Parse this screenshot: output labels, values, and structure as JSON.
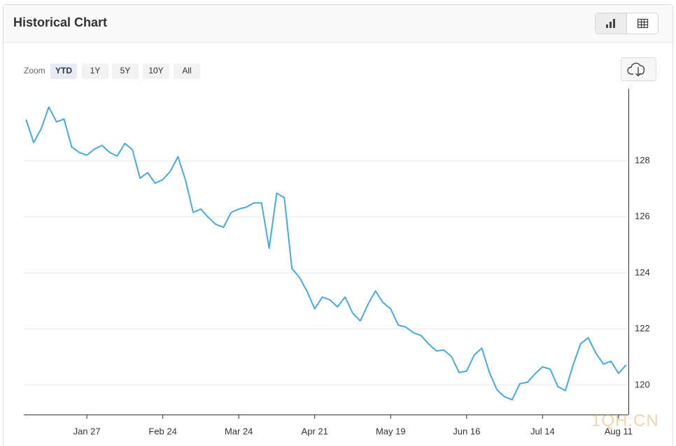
{
  "header": {
    "title": "Historical Chart"
  },
  "zoom": {
    "label": "Zoom",
    "options": [
      "YTD",
      "1Y",
      "5Y",
      "10Y",
      "All"
    ],
    "selected": "YTD"
  },
  "watermark": "1QH.CN",
  "chart_data": {
    "type": "line",
    "color": "#4aa8e0",
    "grid": true,
    "categories": [
      null,
      null,
      null,
      null,
      null,
      null,
      null,
      null,
      "Jan 27",
      null,
      null,
      null,
      null,
      null,
      null,
      null,
      null,
      null,
      "Feb 24",
      null,
      null,
      null,
      null,
      null,
      null,
      null,
      null,
      null,
      "Mar 24",
      null,
      null,
      null,
      null,
      null,
      null,
      null,
      null,
      null,
      "Apr 21",
      null,
      null,
      null,
      null,
      null,
      null,
      null,
      null,
      null,
      "May 19",
      null,
      null,
      null,
      null,
      null,
      null,
      null,
      null,
      null,
      "Jun 16",
      null,
      null,
      null,
      null,
      null,
      null,
      null,
      null,
      null,
      "Jul 14",
      null,
      null,
      null,
      null,
      null,
      null,
      null,
      null,
      null,
      "Aug 11",
      null
    ],
    "values": [
      129.47,
      128.65,
      129.15,
      129.92,
      129.39,
      129.49,
      128.5,
      128.3,
      128.2,
      128.42,
      128.55,
      128.3,
      128.17,
      128.62,
      128.4,
      127.38,
      127.58,
      127.2,
      127.33,
      127.63,
      128.15,
      127.3,
      126.16,
      126.28,
      125.98,
      125.73,
      125.63,
      126.16,
      126.28,
      126.35,
      126.5,
      126.5,
      124.88,
      126.85,
      126.68,
      124.16,
      123.84,
      123.34,
      122.72,
      123.14,
      123.04,
      122.79,
      123.14,
      122.57,
      122.29,
      122.87,
      123.36,
      122.94,
      122.72,
      122.14,
      122.07,
      121.87,
      121.77,
      121.47,
      121.22,
      121.25,
      121.02,
      120.45,
      120.5,
      121.07,
      121.32,
      120.45,
      119.83,
      119.58,
      119.48,
      120.05,
      120.1,
      120.4,
      120.65,
      120.57,
      119.95,
      119.8,
      120.7,
      121.47,
      121.69,
      121.15,
      120.75,
      120.85,
      120.42,
      120.72
    ],
    "ylim": [
      118.95,
      130.57
    ],
    "yticks": [
      120,
      122,
      124,
      126,
      128
    ]
  }
}
